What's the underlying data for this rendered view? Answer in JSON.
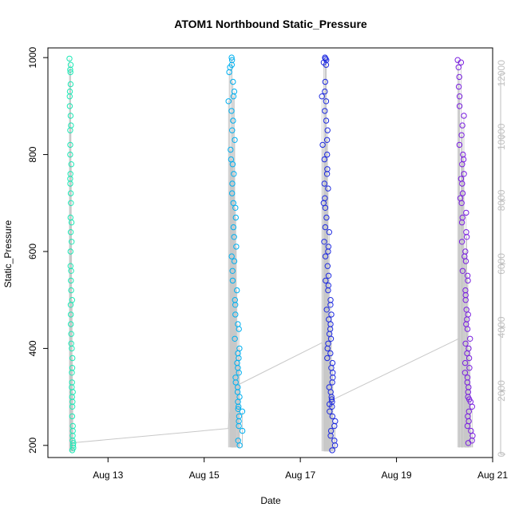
{
  "chart_data": {
    "type": "scatter",
    "title": "ATOM1 Northbound Static_Pressure",
    "xlabel": "Date",
    "ylabel": "Static_Pressure",
    "x_axis": {
      "kind": "date",
      "range": [
        "2024-08-11T18:00",
        "2024-08-21T00:00"
      ],
      "ticks": [
        {
          "value": "2024-08-13",
          "label": "Aug 13"
        },
        {
          "value": "2024-08-15",
          "label": "Aug 15"
        },
        {
          "value": "2024-08-17",
          "label": "Aug 17"
        },
        {
          "value": "2024-08-19",
          "label": "Aug 19"
        },
        {
          "value": "2024-08-21",
          "label": "Aug 21"
        }
      ]
    },
    "y_axis_left": {
      "range": [
        175,
        1020
      ],
      "ticks": [
        200,
        400,
        600,
        800,
        1000
      ]
    },
    "y_axis_right": {
      "range": [
        -100,
        12800
      ],
      "ticks": [
        0,
        2000,
        4000,
        6000,
        8000,
        10000,
        12000
      ],
      "color": "#bfbfbf"
    },
    "grid": false,
    "legend": "none",
    "marker": "open-circle",
    "colors": {
      "line": "#c8c8c8",
      "series": [
        "#1de9b6",
        "#00b0f0",
        "#1f2be0",
        "#7a1fe0"
      ]
    },
    "series": [
      {
        "color": "#1de9b6",
        "x_start": "2024-08-12T04:30",
        "x_end": "2024-08-12T06:50",
        "y_min": 188,
        "y_max": 1000,
        "values": [
          998,
          985,
          975,
          970,
          945,
          930,
          920,
          900,
          880,
          860,
          850,
          820,
          800,
          780,
          760,
          750,
          740,
          720,
          700,
          670,
          660,
          640,
          620,
          600,
          570,
          560,
          540,
          520,
          500,
          490,
          470,
          450,
          430,
          410,
          400,
          380,
          360,
          350,
          330,
          320,
          310,
          300,
          290,
          280,
          260,
          240,
          230,
          220,
          210,
          205,
          200,
          195,
          190
        ]
      },
      {
        "color": "#00b0f0",
        "x_start": "2024-08-15T11:30",
        "x_end": "2024-08-15T19:30",
        "y_min": 196,
        "y_max": 1000,
        "values": [
          1000,
          995,
          985,
          980,
          970,
          950,
          930,
          920,
          910,
          890,
          870,
          850,
          830,
          810,
          790,
          780,
          760,
          740,
          720,
          700,
          690,
          670,
          650,
          630,
          610,
          590,
          580,
          560,
          540,
          520,
          500,
          490,
          470,
          450,
          440,
          420,
          400,
          390,
          380,
          370,
          360,
          350,
          340,
          330,
          320,
          310,
          300,
          290,
          280,
          275,
          270,
          260,
          250,
          240,
          230,
          210,
          200
        ]
      },
      {
        "color": "#1f2be0",
        "x_start": "2024-08-17T10:00",
        "x_end": "2024-08-17T17:50",
        "y_min": 188,
        "y_max": 1000,
        "values": [
          1000,
          998,
          995,
          990,
          985,
          950,
          930,
          920,
          910,
          890,
          870,
          850,
          830,
          820,
          800,
          790,
          770,
          760,
          740,
          730,
          710,
          700,
          690,
          670,
          650,
          640,
          620,
          610,
          600,
          590,
          570,
          550,
          540,
          530,
          520,
          500,
          490,
          480,
          470,
          460,
          450,
          440,
          430,
          420,
          410,
          400,
          390,
          380,
          370,
          360,
          350,
          340,
          330,
          320,
          310,
          300,
          295,
          290,
          285,
          280,
          270,
          260,
          250,
          240,
          230,
          220,
          210,
          200,
          190
        ]
      },
      {
        "color": "#7a1fe0",
        "x_start": "2024-08-20T06:30",
        "x_end": "2024-08-20T14:30",
        "y_min": 196,
        "y_max": 998,
        "values": [
          995,
          990,
          980,
          960,
          940,
          920,
          900,
          880,
          860,
          840,
          820,
          800,
          790,
          780,
          760,
          750,
          740,
          720,
          710,
          700,
          680,
          670,
          660,
          640,
          630,
          620,
          600,
          590,
          580,
          560,
          550,
          540,
          520,
          510,
          500,
          480,
          470,
          460,
          450,
          440,
          420,
          410,
          400,
          390,
          380,
          370,
          360,
          350,
          340,
          330,
          320,
          310,
          300,
          295,
          290,
          280,
          270,
          260,
          250,
          240,
          230,
          220,
          210,
          205
        ]
      }
    ],
    "connector_path": [
      {
        "x": "2024-08-12T05:30",
        "y": 205
      },
      {
        "x": "2024-08-15T12:00",
        "y": 235
      },
      {
        "x": "2024-08-15T14:30",
        "y": 320
      },
      {
        "x": "2024-08-17T11:00",
        "y": 412
      },
      {
        "x": "2024-08-17T14:00",
        "y": 290
      },
      {
        "x": "2024-08-20T07:00",
        "y": 420
      }
    ]
  }
}
